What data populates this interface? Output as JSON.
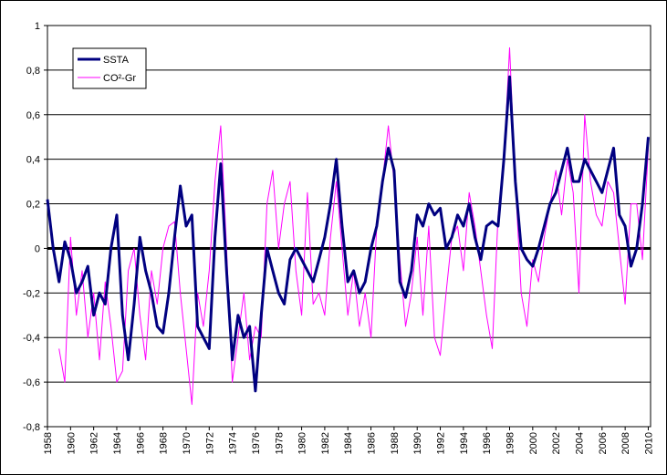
{
  "chart_data": {
    "type": "line",
    "x": [
      1958,
      1958.5,
      1959,
      1959.5,
      1960,
      1960.5,
      1961,
      1961.5,
      1962,
      1962.5,
      1963,
      1963.5,
      1964,
      1964.5,
      1965,
      1965.5,
      1966,
      1966.5,
      1967,
      1967.5,
      1968,
      1968.5,
      1969,
      1969.5,
      1970,
      1970.5,
      1971,
      1971.5,
      1972,
      1972.5,
      1973,
      1973.5,
      1974,
      1974.5,
      1975,
      1975.5,
      1976,
      1976.5,
      1977,
      1977.5,
      1978,
      1978.5,
      1979,
      1979.5,
      1980,
      1980.5,
      1981,
      1981.5,
      1982,
      1982.5,
      1983,
      1983.5,
      1984,
      1984.5,
      1985,
      1985.5,
      1986,
      1986.5,
      1987,
      1987.5,
      1988,
      1988.5,
      1989,
      1989.5,
      1990,
      1990.5,
      1991,
      1991.5,
      1992,
      1992.5,
      1993,
      1993.5,
      1994,
      1994.5,
      1995,
      1995.5,
      1996,
      1996.5,
      1997,
      1997.5,
      1998,
      1998.5,
      1999,
      1999.5,
      2000,
      2000.5,
      2001,
      2001.5,
      2002,
      2002.5,
      2003,
      2003.5,
      2004,
      2004.5,
      2005,
      2005.5,
      2006,
      2006.5,
      2007,
      2007.5,
      2008,
      2008.5,
      2009,
      2009.5,
      2010
    ],
    "series": [
      {
        "name": "SSTA",
        "color": "#000080",
        "width": 3,
        "values": [
          0.22,
          0.0,
          -0.15,
          0.03,
          -0.05,
          -0.2,
          -0.15,
          -0.08,
          -0.3,
          -0.2,
          -0.25,
          0.0,
          0.15,
          -0.3,
          -0.5,
          -0.25,
          0.05,
          -0.1,
          -0.2,
          -0.35,
          -0.38,
          -0.2,
          0.05,
          0.28,
          0.1,
          0.15,
          -0.35,
          -0.4,
          -0.45,
          0.05,
          0.38,
          -0.1,
          -0.5,
          -0.3,
          -0.4,
          -0.35,
          -0.64,
          -0.3,
          0.0,
          -0.1,
          -0.2,
          -0.25,
          -0.05,
          0.0,
          -0.05,
          -0.1,
          -0.15,
          -0.05,
          0.05,
          0.2,
          0.4,
          0.1,
          -0.15,
          -0.1,
          -0.2,
          -0.15,
          0.0,
          0.1,
          0.3,
          0.45,
          0.35,
          -0.15,
          -0.22,
          -0.1,
          0.15,
          0.1,
          0.2,
          0.15,
          0.18,
          0.0,
          0.05,
          0.15,
          0.1,
          0.2,
          0.05,
          -0.05,
          0.1,
          0.12,
          0.1,
          0.4,
          0.77,
          0.3,
          0.0,
          -0.05,
          -0.08,
          0.0,
          0.1,
          0.2,
          0.25,
          0.35,
          0.45,
          0.3,
          0.3,
          0.4,
          0.35,
          0.3,
          0.25,
          0.35,
          0.45,
          0.15,
          0.1,
          -0.08,
          0.0,
          0.2,
          0.5
        ]
      },
      {
        "name": "CO²-Gr",
        "color": "#ff00ff",
        "width": 1,
        "values": [
          null,
          null,
          -0.45,
          -0.6,
          0.05,
          -0.3,
          -0.1,
          -0.4,
          -0.2,
          -0.5,
          -0.15,
          -0.35,
          -0.6,
          -0.55,
          -0.1,
          0.0,
          -0.3,
          -0.5,
          -0.1,
          -0.25,
          0.0,
          0.1,
          0.12,
          -0.2,
          -0.45,
          -0.7,
          -0.2,
          -0.35,
          -0.1,
          0.3,
          0.55,
          0.0,
          -0.6,
          -0.4,
          -0.2,
          -0.5,
          -0.35,
          -0.4,
          0.2,
          0.35,
          0.0,
          0.2,
          0.3,
          -0.1,
          -0.3,
          0.25,
          -0.25,
          -0.2,
          -0.3,
          0.05,
          0.3,
          0.0,
          -0.3,
          -0.1,
          -0.35,
          -0.2,
          -0.4,
          0.1,
          0.3,
          0.55,
          0.3,
          -0.05,
          -0.35,
          -0.2,
          0.05,
          -0.3,
          0.1,
          -0.4,
          -0.48,
          -0.2,
          0.05,
          0.1,
          -0.1,
          0.25,
          0.1,
          -0.1,
          -0.3,
          -0.45,
          0.15,
          0.4,
          0.9,
          0.3,
          -0.2,
          -0.35,
          -0.05,
          -0.15,
          0.05,
          0.2,
          0.35,
          0.15,
          0.4,
          0.25,
          -0.2,
          0.6,
          0.3,
          0.15,
          0.1,
          0.3,
          0.25,
          0.0,
          -0.25,
          0.2,
          0.2,
          -0.05,
          0.45
        ]
      }
    ],
    "xlim": [
      1958,
      2010.2
    ],
    "xticks": [
      1958,
      1960,
      1962,
      1964,
      1966,
      1968,
      1970,
      1972,
      1974,
      1976,
      1978,
      1980,
      1982,
      1984,
      1986,
      1988,
      1990,
      1992,
      1994,
      1996,
      1998,
      2000,
      2002,
      2004,
      2006,
      2008,
      2010
    ],
    "ylim": [
      -0.8,
      1
    ],
    "yticks": [
      {
        "value": -0.8,
        "label": "-0,8"
      },
      {
        "value": -0.6,
        "label": "-0,6"
      },
      {
        "value": -0.4,
        "label": "-0,4"
      },
      {
        "value": -0.2,
        "label": "-0,2"
      },
      0,
      {
        "value": 0.2,
        "label": "0,2"
      },
      {
        "value": 0.4,
        "label": "0,4"
      },
      {
        "value": 0.6,
        "label": "0,6"
      },
      {
        "value": 0.8,
        "label": "0,8"
      },
      1
    ],
    "grid": true,
    "legend": "upper left"
  }
}
